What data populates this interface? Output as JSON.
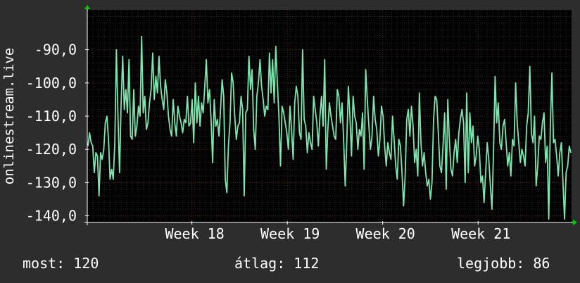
{
  "chart_data": {
    "type": "line",
    "ylabel": "onlinestream.live",
    "ylim": [
      -142,
      -78
    ],
    "y_ticks": [
      {
        "value": -90,
        "label": "-90,0"
      },
      {
        "value": -100,
        "label": "-100,0"
      },
      {
        "value": -110,
        "label": "-110,0"
      },
      {
        "value": -120,
        "label": "-120,0"
      },
      {
        "value": -130,
        "label": "-130,0"
      },
      {
        "value": -140,
        "label": "-140,0"
      }
    ],
    "x_range": [
      0,
      100
    ],
    "x_ticks": [
      {
        "value": 21.6,
        "label": "Week 18"
      },
      {
        "value": 41.3,
        "label": "Week 19"
      },
      {
        "value": 61.0,
        "label": "Week 20"
      },
      {
        "value": 80.7,
        "label": "Week 21"
      }
    ],
    "grid": true,
    "colors": {
      "background": "#2d2d2d",
      "plot_background": "#000000",
      "grid_minor": "#2b2b2b",
      "grid_major": "#5a2a2a",
      "line": "#7fe5b0",
      "axis": "#ffffff",
      "arrow": "#00cc00"
    },
    "series": [
      {
        "values": [
          -119,
          -115,
          -118,
          -119,
          -127,
          -121,
          -122,
          -134,
          -121,
          -123,
          -120,
          -112,
          -110,
          -117,
          -129,
          -126,
          -129,
          -118,
          -90,
          -110,
          -127,
          -106,
          -92,
          -108,
          -102,
          -109,
          -93,
          -116,
          -117,
          -102,
          -116,
          -113,
          -107,
          -110,
          -86,
          -109,
          -104,
          -114,
          -112,
          -106,
          -102,
          -91,
          -105,
          -98,
          -103,
          -92,
          -101,
          -105,
          -108,
          -99,
          -103,
          -110,
          -114,
          -116,
          -105,
          -112,
          -116,
          -107,
          -110,
          -112,
          -115,
          -111,
          -112,
          -104,
          -113,
          -112,
          -105,
          -118,
          -100,
          -112,
          -104,
          -113,
          -106,
          -109,
          -101,
          -93,
          -106,
          -102,
          -111,
          -124,
          -105,
          -113,
          -111,
          -116,
          -108,
          -99,
          -104,
          -129,
          -133,
          -119,
          -112,
          -97,
          -100,
          -110,
          -117,
          -113,
          -112,
          -104,
          -108,
          -134,
          -109,
          -108,
          -92,
          -102,
          -96,
          -114,
          -120,
          -104,
          -100,
          -93,
          -101,
          -105,
          -110,
          -107,
          -108,
          -91,
          -103,
          -93,
          -106,
          -89,
          -100,
          -110,
          -125,
          -107,
          -109,
          -112,
          -115,
          -120,
          -107,
          -114,
          -123,
          -106,
          -101,
          -104,
          -115,
          -117,
          -90,
          -111,
          -113,
          -121,
          -115,
          -118,
          -120,
          -104,
          -108,
          -112,
          -119,
          -110,
          -104,
          -113,
          -93,
          -126,
          -114,
          -106,
          -110,
          -113,
          -116,
          -117,
          -102,
          -104,
          -112,
          -106,
          -117,
          -131,
          -118,
          -101,
          -110,
          -122,
          -104,
          -110,
          -112,
          -120,
          -114,
          -116,
          -109,
          -126,
          -96,
          -105,
          -113,
          -120,
          -116,
          -104,
          -111,
          -114,
          -122,
          -117,
          -107,
          -110,
          -119,
          -125,
          -118,
          -121,
          -123,
          -110,
          -117,
          -125,
          -129,
          -117,
          -119,
          -127,
          -137,
          -128,
          -111,
          -108,
          -116,
          -107,
          -113,
          -124,
          -120,
          -128,
          -103,
          -118,
          -125,
          -121,
          -127,
          -131,
          -129,
          -135,
          -130,
          -111,
          -104,
          -105,
          -115,
          -125,
          -127,
          -119,
          -109,
          -132,
          -105,
          -117,
          -126,
          -128,
          -121,
          -117,
          -124,
          -115,
          -111,
          -108,
          -112,
          -130,
          -103,
          -127,
          -109,
          -118,
          -113,
          -125,
          -122,
          -116,
          -120,
          -130,
          -128,
          -136,
          -127,
          -118,
          -123,
          -131,
          -138,
          -121,
          -98,
          -112,
          -106,
          -118,
          -120,
          -113,
          -111,
          -118,
          -125,
          -121,
          -128,
          -117,
          -119,
          -100,
          -112,
          -118,
          -124,
          -120,
          -122,
          -125,
          -113,
          -109,
          -95,
          -115,
          -118,
          -110,
          -131,
          -125,
          -116,
          -117,
          -112,
          -109,
          -124,
          -119,
          -141,
          -113,
          -97,
          -118,
          -117,
          -122,
          -128,
          -121,
          -118,
          -130,
          -141,
          -127,
          -125,
          -119,
          -121
        ]
      }
    ]
  },
  "stats": {
    "current": "most: 120",
    "average": "átlag: 112",
    "best": "legjobb: 86"
  }
}
